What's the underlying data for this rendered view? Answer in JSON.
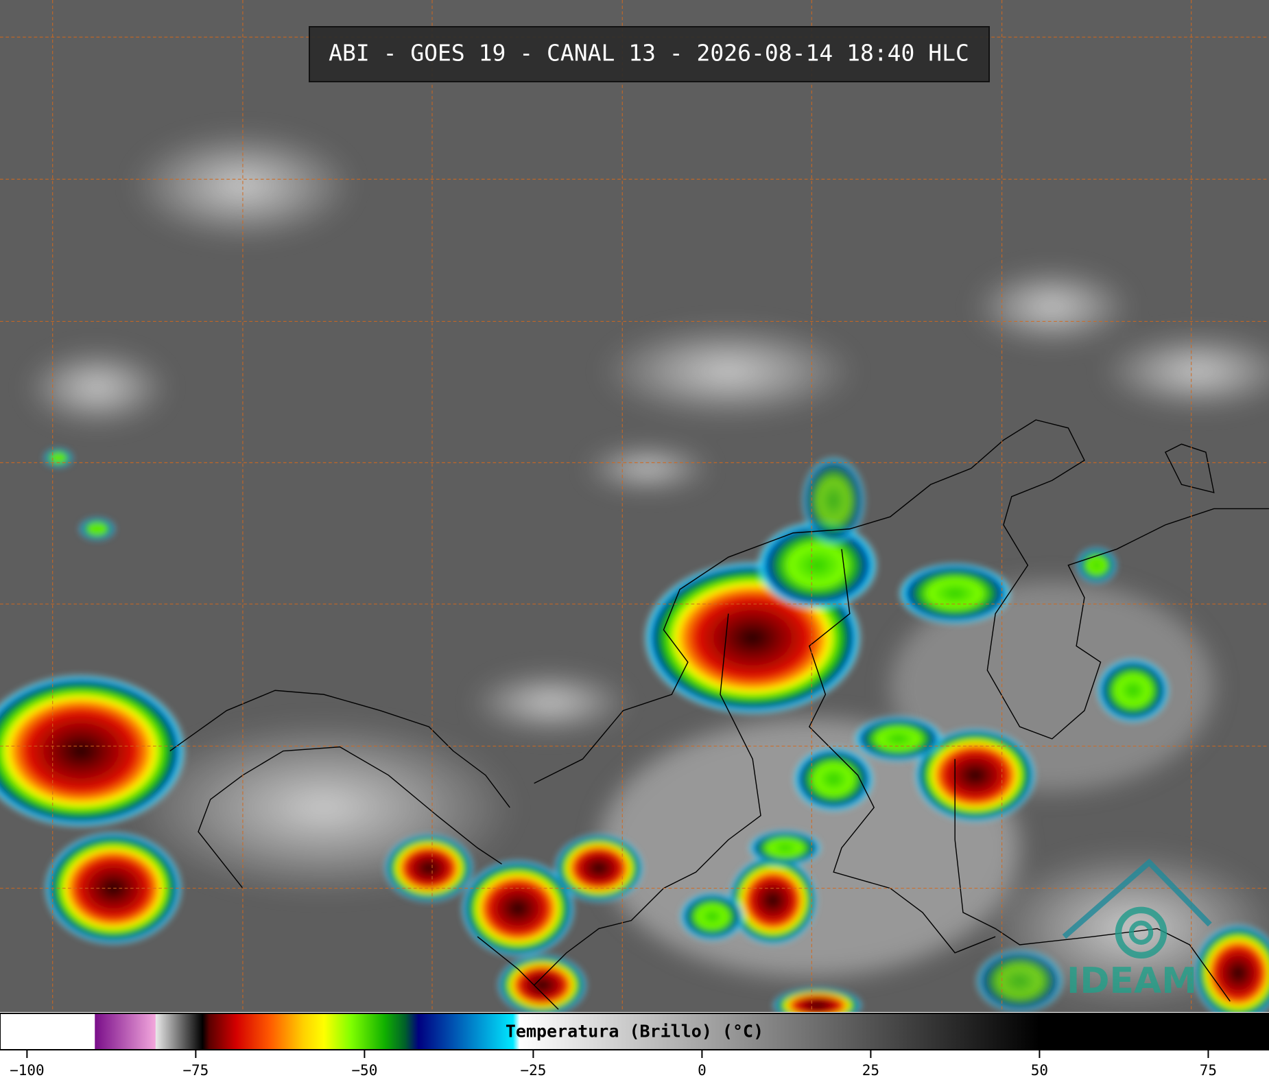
{
  "chart_data": {
    "type": "colorbar",
    "title": "ABI - GOES 19 - CANAL 13 - 2026-08-14 18:40 HLC",
    "colorbar_label": "Temperatura (Brillo) (°C)",
    "logo": "IDEAM",
    "xlim": [
      -104,
      84
    ],
    "xticks": [
      {
        "value": -100,
        "label": "−100"
      },
      {
        "value": -75,
        "label": "−75"
      },
      {
        "value": -50,
        "label": "−50"
      },
      {
        "value": -25,
        "label": "−25"
      },
      0,
      25,
      50,
      75
    ],
    "colormap": [
      {
        "value": -104,
        "color": "#ffffff"
      },
      {
        "value": -90,
        "color": "#ffffff"
      },
      {
        "value": -89.9,
        "color": "#7a0f8a"
      },
      {
        "value": -81,
        "color": "#f2a6dc"
      },
      {
        "value": -80.9,
        "color": "#e8e8e8"
      },
      {
        "value": -76,
        "color": "#444444"
      },
      {
        "value": -74,
        "color": "#000000"
      },
      {
        "value": -73,
        "color": "#5a0000"
      },
      {
        "value": -69,
        "color": "#d40000"
      },
      {
        "value": -64,
        "color": "#ff5a00"
      },
      {
        "value": -59,
        "color": "#ffd200"
      },
      {
        "value": -56,
        "color": "#ffff00"
      },
      {
        "value": -52,
        "color": "#80ff00"
      },
      {
        "value": -47,
        "color": "#10b000"
      },
      {
        "value": -44,
        "color": "#00602a"
      },
      {
        "value": -42,
        "color": "#000080"
      },
      {
        "value": -37,
        "color": "#0050b0"
      },
      {
        "value": -28,
        "color": "#00e8ff"
      },
      {
        "value": -27,
        "color": "#ffffff"
      },
      {
        "value": 50,
        "color": "#000000"
      },
      {
        "value": 84,
        "color": "#000000"
      }
    ]
  }
}
